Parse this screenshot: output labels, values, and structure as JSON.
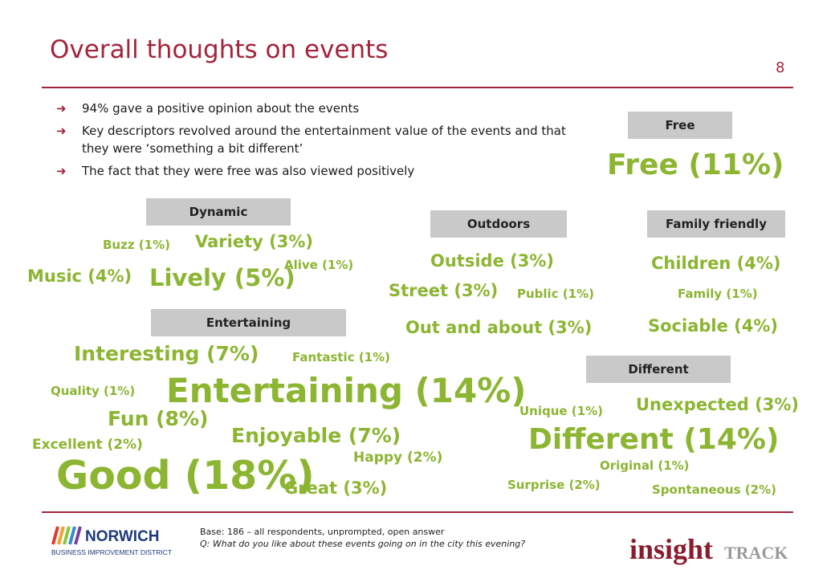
{
  "header": {
    "title": "Overall thoughts on events",
    "page_number": "8"
  },
  "bullets": [
    "94% gave a positive opinion about the events",
    "Key descriptors revolved around the entertainment value of the events and that they were ‘something a bit different’",
    "The fact that they were free was also viewed positively"
  ],
  "categories": {
    "free": "Free",
    "dynamic": "Dynamic",
    "outdoors": "Outdoors",
    "family": "Family friendly",
    "entertaining": "Entertaining",
    "different": "Different"
  },
  "words": {
    "free": "Free (11%)",
    "buzz": "Buzz (1%)",
    "variety": "Variety (3%)",
    "alive": "Alive (1%)",
    "music": "Music (4%)",
    "lively": "Lively (5%)",
    "outside": "Outside (3%)",
    "street": "Street (3%)",
    "public": "Public (1%)",
    "out_and_about": "Out and about (3%)",
    "children": "Children (4%)",
    "family": "Family (1%)",
    "sociable": "Sociable (4%)",
    "interesting": "Interesting (7%)",
    "fantastic": "Fantastic (1%)",
    "quality": "Quality (1%)",
    "entertaining": "Entertaining (14%)",
    "fun": "Fun (8%)",
    "enjoyable": "Enjoyable (7%)",
    "excellent": "Excellent (2%)",
    "happy": "Happy (2%)",
    "good": "Good (18%)",
    "great": "Great (3%)",
    "unique": "Unique (1%)",
    "unexpected": "Unexpected (3%)",
    "different": "Different (14%)",
    "original": "Original (1%)",
    "surprise": "Surprise (2%)",
    "spontaneous": "Spontaneous (2%)"
  },
  "footnote": {
    "base": "Base: 186 – all respondents, unprompted, open answer",
    "question": "Q: What do you like about these events going on in the city this evening?"
  },
  "logos": {
    "norwich_main": "NORWICH",
    "norwich_sub": "BUSINESS IMPROVEMENT DISTRICT",
    "insight_main": "insight",
    "insight_sub": "TRACK"
  },
  "colors": {
    "accent": "#a3243b",
    "word": "#8cb532",
    "category_bg": "#c9c9c9"
  }
}
